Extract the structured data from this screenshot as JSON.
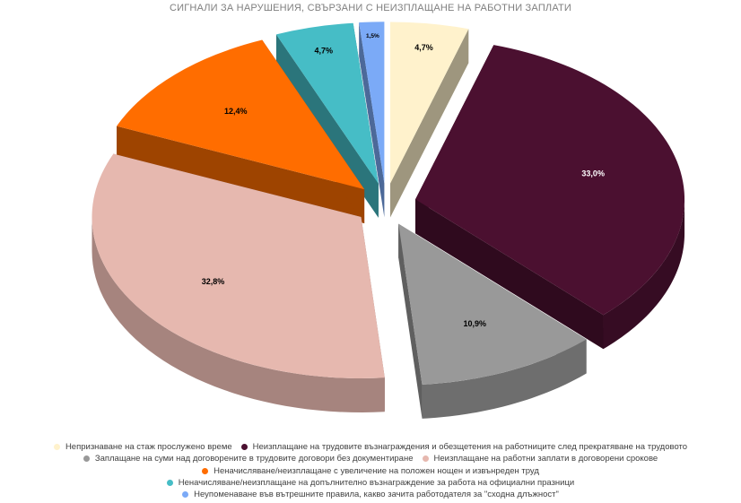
{
  "chart_data": {
    "type": "pie",
    "title": "СИГНАЛИ ЗА НАРУШЕНИЯ, СВЪРЗАНИ С НЕИЗПЛАЩАНЕ НА РАБОТНИ ЗАПЛАТИ",
    "three_d": true,
    "exploded": true,
    "legend_position": "bottom",
    "slices": [
      {
        "label": "Непризнаване на стаж прослужено време",
        "value": 4.7,
        "value_label": "4,7%",
        "color": "#FFF2CC"
      },
      {
        "label": "Неизплащане на трудовите възнаграждения и обезщетения на работниците след прекратяване на трудовото",
        "value": 33.0,
        "value_label": "33,0%",
        "color": "#4B1030"
      },
      {
        "label": "Заплащане на суми над договорените в трудовите договори без документиране",
        "value": 10.9,
        "value_label": "10,9%",
        "color": "#999999"
      },
      {
        "label": "Неизплащане на работни заплати  в договорени срокове",
        "value": 32.8,
        "value_label": "32,8%",
        "color": "#E6B8AF"
      },
      {
        "label": "Неначисляване/неизплащане с увеличение на положен нощен и извънреден труд",
        "value": 12.4,
        "value_label": "12,4%",
        "color": "#FF6D00"
      },
      {
        "label": "Неначисляване/неизплащане на допълнително възнаграждение за работа на официални празници",
        "value": 4.7,
        "value_label": "4,7%",
        "color": "#46BDC6"
      },
      {
        "label": "Неупоменаване във вътрешните правила, какво зачита работодателя за \"сходна длъжност\"",
        "value": 1.5,
        "value_label": "1,5%",
        "color": "#7BAAF7"
      }
    ]
  }
}
